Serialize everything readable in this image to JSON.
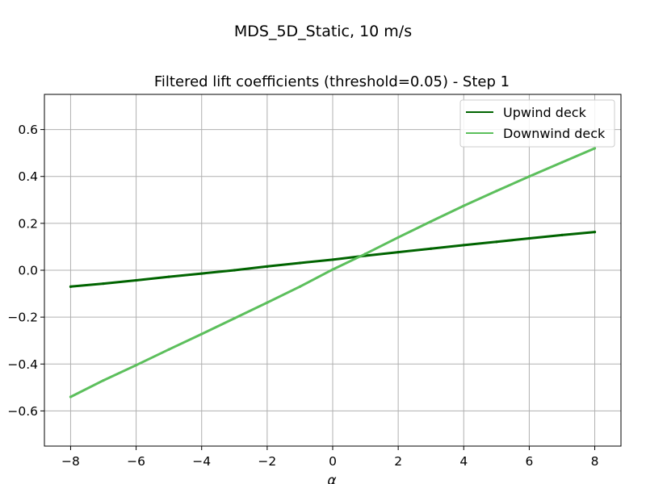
{
  "figure": {
    "suptitle": "MDS_5D_Static, 10 m/s"
  },
  "chart_data": {
    "type": "line",
    "title": "Filtered lift coefficients (threshold=0.05) - Step 1",
    "xlabel": "α",
    "ylabel": "",
    "xlim": [
      -8.8,
      8.8
    ],
    "ylim": [
      -0.75,
      0.75
    ],
    "xticks": [
      -8,
      -6,
      -4,
      -2,
      0,
      2,
      4,
      6,
      8
    ],
    "xtick_labels": [
      "−8",
      "−6",
      "−4",
      "−2",
      "0",
      "2",
      "4",
      "6",
      "8"
    ],
    "yticks": [
      -0.6,
      -0.4,
      -0.2,
      0.0,
      0.2,
      0.4,
      0.6
    ],
    "ytick_labels": [
      "−0.6",
      "−0.4",
      "−0.2",
      "0.0",
      "0.2",
      "0.4",
      "0.6"
    ],
    "grid": true,
    "legend_position": "top-right",
    "series": [
      {
        "name": "Upwind deck",
        "color": "#006400",
        "x": [
          -8,
          -7,
          -6,
          -5,
          -4,
          -3,
          -2,
          -1,
          0,
          1,
          2,
          3,
          4,
          5,
          6,
          7,
          8
        ],
        "y": [
          -0.07,
          -0.057,
          -0.043,
          -0.028,
          -0.014,
          0.0,
          0.016,
          0.031,
          0.045,
          0.062,
          0.077,
          0.092,
          0.107,
          0.121,
          0.136,
          0.15,
          0.163
        ]
      },
      {
        "name": "Downwind deck",
        "color": "#5cbf5c",
        "x": [
          -8,
          -7,
          -6,
          -5,
          -4,
          -3,
          -2,
          -1,
          0,
          1,
          2,
          3,
          4,
          5,
          6,
          7,
          8
        ],
        "y": [
          -0.54,
          -0.47,
          -0.405,
          -0.338,
          -0.272,
          -0.205,
          -0.138,
          -0.07,
          0.003,
          0.07,
          0.14,
          0.208,
          0.275,
          0.338,
          0.4,
          0.46,
          0.52
        ]
      }
    ]
  }
}
